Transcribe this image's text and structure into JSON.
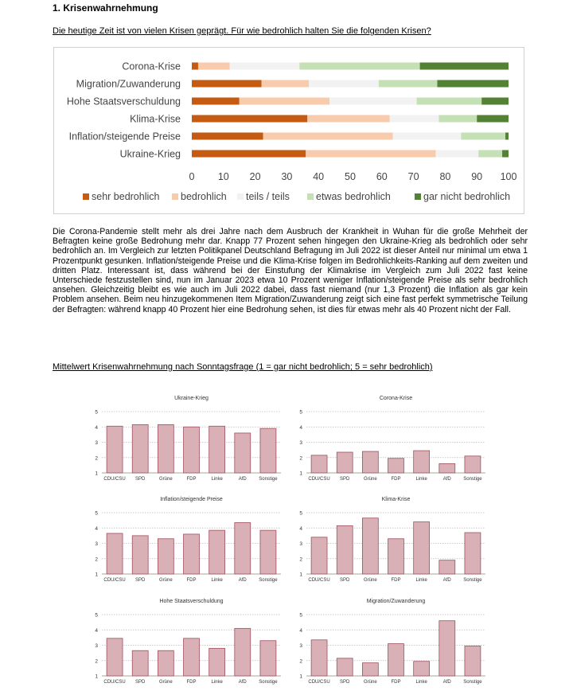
{
  "section_title": "1. Krisenwahrnehmung",
  "question_title": "Die heutige Zeit ist von vielen Krisen geprägt. Für wie bedrohlich halten Sie die folgenden Krisen?",
  "paragraph": "Die Corona-Pandemie stellt mehr als drei Jahre nach dem Ausbruch der Krankheit in Wuhan für die große Mehrheit der Befragten keine große Bedrohung mehr dar. Knapp 77 Prozent sehen hingegen den Ukraine-Krieg als bedrohlich oder sehr bedrohlich an. Im Vergleich zur letzten Politikpanel Deutschland Befragung im Juli 2022 ist dieser Anteil nur minimal um etwa 1 Prozentpunkt gesunken. Inflation/steigende Preise und die Klima-Krise folgen im Bedrohlichkeits-Ranking auf dem zweiten und dritten Platz. Interessant ist, dass während bei der Einstufung der Klimakrise im Vergleich zum Juli 2022 fast keine Unterschiede festzustellen sind, nun im Januar 2023 etwa 10 Prozent weniger Inflation/steigende Preise als sehr bedrohlich ansehen. Gleichzeitig bleibt es wie auch im Juli 2022 dabei, dass fast niemand (nur 1,3 Prozent) die Inflation als gar kein Problem ansehen. Beim neu hinzugekommenen Item Migration/Zuwanderung zeigt sich eine fast perfekt symmetrische Teilung der Befragten: während knapp 40 Prozent hier eine Bedrohung sehen, ist dies für etwas mehr als 40 Prozent nicht der Fall.",
  "mean_title": "Mittelwert Krisenwahrnehmung nach Sonntagsfrage (1 = gar nicht bedrohlich; 5 = sehr bedrohlich)",
  "colors": {
    "sehr_bedrohlich": "#c55a11",
    "bedrohlich": "#f8cbad",
    "teils": "#f2f2f2",
    "etwas": "#c5e0b4",
    "gar_nicht": "#548235",
    "small_bar_fill": "#d8b0b5",
    "small_bar_stroke": "#a05060"
  },
  "chart_data": [
    {
      "type": "bar",
      "orientation": "horizontal",
      "stacked": true,
      "categories": [
        "Corona-Krise",
        "Migration/Zuwanderung",
        "Hohe Staatsverschuldung",
        "Klima-Krise",
        "Inflation/steigende Preise",
        "Ukraine-Krieg"
      ],
      "series": [
        {
          "name": "sehr bedrohlich",
          "values": [
            2,
            22,
            15,
            36.5,
            22.5,
            36
          ]
        },
        {
          "name": "bedrohlich",
          "values": [
            10,
            15,
            28.5,
            26,
            41,
            41
          ]
        },
        {
          "name": "teils / teils",
          "values": [
            22,
            22,
            27.5,
            15.5,
            21.5,
            13.5
          ]
        },
        {
          "name": "etwas bedrohlich",
          "values": [
            38,
            18.5,
            20.5,
            12,
            14,
            7.5
          ]
        },
        {
          "name": "gar nicht bedrohlich",
          "values": [
            28,
            22.5,
            8.5,
            10,
            1,
            2
          ]
        }
      ],
      "xlim": [
        0,
        100
      ],
      "xticks": [
        "0",
        "10",
        "20",
        "30",
        "40",
        "50",
        "60",
        "70",
        "80",
        "90",
        "100"
      ],
      "legend_position": "bottom"
    },
    {
      "type": "bar",
      "title": "Ukraine-Krieg",
      "categories": [
        "CDU/CSU",
        "SPD",
        "Grüne",
        "FDP",
        "Linke",
        "AfD",
        "Sonstige"
      ],
      "values": [
        4.05,
        4.15,
        4.15,
        4.0,
        4.05,
        3.6,
        3.9
      ],
      "ylim": [
        1,
        5
      ],
      "yticks": [
        "1",
        "2",
        "3",
        "4",
        "5"
      ]
    },
    {
      "type": "bar",
      "title": "Corona-Krise",
      "categories": [
        "CDU/CSU",
        "SPD",
        "Grüne",
        "FDP",
        "Linke",
        "AfD",
        "Sonstige"
      ],
      "values": [
        2.15,
        2.35,
        2.4,
        1.95,
        2.45,
        1.6,
        2.1
      ],
      "ylim": [
        1,
        5
      ],
      "yticks": [
        "1",
        "2",
        "3",
        "4",
        "5"
      ]
    },
    {
      "type": "bar",
      "title": "Inflation/steigende Preise",
      "categories": [
        "CDU/CSU",
        "SPD",
        "Grüne",
        "FDP",
        "Linke",
        "AfD",
        "Sonstige"
      ],
      "values": [
        3.65,
        3.5,
        3.3,
        3.6,
        3.85,
        4.35,
        3.85
      ],
      "ylim": [
        1,
        5
      ],
      "yticks": [
        "1",
        "2",
        "3",
        "4",
        "5"
      ]
    },
    {
      "type": "bar",
      "title": "Klima-Krise",
      "categories": [
        "CDU/CSU",
        "SPD",
        "Grüne",
        "FDP",
        "Linke",
        "AfD",
        "Sonstige"
      ],
      "values": [
        3.4,
        4.15,
        4.65,
        3.3,
        4.4,
        1.9,
        3.7
      ],
      "ylim": [
        1,
        5
      ],
      "yticks": [
        "1",
        "2",
        "3",
        "4",
        "5"
      ]
    },
    {
      "type": "bar",
      "title": "Hohe Staatsverschuldung",
      "categories": [
        "CDU/CSU",
        "SPD",
        "Grüne",
        "FDP",
        "Linke",
        "AfD",
        "Sonstige"
      ],
      "values": [
        3.45,
        2.65,
        2.65,
        3.45,
        2.8,
        4.1,
        3.3
      ],
      "ylim": [
        1,
        5
      ],
      "yticks": [
        "1",
        "2",
        "3",
        "4",
        "5"
      ]
    },
    {
      "type": "bar",
      "title": "Migration/Zuwanderung",
      "categories": [
        "CDU/CSU",
        "SPD",
        "Grüne",
        "FDP",
        "Linke",
        "AfD",
        "Sonstige"
      ],
      "values": [
        3.35,
        2.15,
        1.85,
        3.1,
        1.95,
        4.6,
        2.95
      ],
      "ylim": [
        1,
        5
      ],
      "yticks": [
        "1",
        "2",
        "3",
        "4",
        "5"
      ]
    }
  ]
}
